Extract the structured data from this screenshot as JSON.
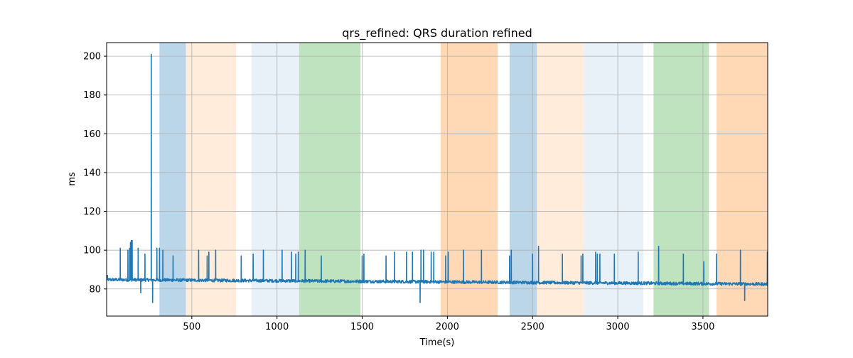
{
  "chart_data": {
    "type": "line",
    "title": "qrs_refined: QRS duration refined",
    "xlabel": "Time(s)",
    "ylabel": "ms",
    "xlim": [
      0,
      3880
    ],
    "ylim": [
      66,
      207
    ],
    "x_ticks": [
      500,
      1000,
      1500,
      2000,
      2500,
      3000,
      3500
    ],
    "x_tick_labels": [
      "500",
      "1000",
      "1500",
      "2000",
      "2500",
      "3000",
      "3500"
    ],
    "y_ticks": [
      80,
      100,
      120,
      140,
      160,
      180,
      200
    ],
    "y_tick_labels": [
      "80",
      "100",
      "120",
      "140",
      "160",
      "180",
      "200"
    ],
    "grid": true,
    "legend": "none",
    "line_color": "#1f77b4",
    "baseline": {
      "x_start": 0,
      "x_end": 3880,
      "y_start": 84.8,
      "y_end": 82.5,
      "noise": 0.8
    },
    "spikes": [
      {
        "x": 5,
        "y": 87
      },
      {
        "x": 80,
        "y": 101
      },
      {
        "x": 125,
        "y": 100
      },
      {
        "x": 135,
        "y": 101
      },
      {
        "x": 140,
        "y": 104
      },
      {
        "x": 145,
        "y": 105
      },
      {
        "x": 150,
        "y": 105
      },
      {
        "x": 185,
        "y": 101
      },
      {
        "x": 200,
        "y": 78
      },
      {
        "x": 225,
        "y": 98
      },
      {
        "x": 262,
        "y": 201
      },
      {
        "x": 270,
        "y": 73
      },
      {
        "x": 295,
        "y": 101
      },
      {
        "x": 310,
        "y": 101
      },
      {
        "x": 330,
        "y": 100
      },
      {
        "x": 390,
        "y": 97
      },
      {
        "x": 540,
        "y": 100
      },
      {
        "x": 590,
        "y": 97
      },
      {
        "x": 600,
        "y": 99
      },
      {
        "x": 640,
        "y": 100
      },
      {
        "x": 790,
        "y": 97
      },
      {
        "x": 860,
        "y": 98
      },
      {
        "x": 920,
        "y": 100
      },
      {
        "x": 1030,
        "y": 100
      },
      {
        "x": 1085,
        "y": 99
      },
      {
        "x": 1110,
        "y": 98
      },
      {
        "x": 1125,
        "y": 99
      },
      {
        "x": 1165,
        "y": 100
      },
      {
        "x": 1260,
        "y": 97
      },
      {
        "x": 1500,
        "y": 97
      },
      {
        "x": 1510,
        "y": 98
      },
      {
        "x": 1640,
        "y": 97
      },
      {
        "x": 1690,
        "y": 99
      },
      {
        "x": 1760,
        "y": 99
      },
      {
        "x": 1795,
        "y": 99
      },
      {
        "x": 1840,
        "y": 73
      },
      {
        "x": 1845,
        "y": 100
      },
      {
        "x": 1860,
        "y": 100
      },
      {
        "x": 1905,
        "y": 99
      },
      {
        "x": 1920,
        "y": 99
      },
      {
        "x": 1990,
        "y": 97
      },
      {
        "x": 2005,
        "y": 99
      },
      {
        "x": 2095,
        "y": 100
      },
      {
        "x": 2200,
        "y": 100
      },
      {
        "x": 2365,
        "y": 97
      },
      {
        "x": 2375,
        "y": 100
      },
      {
        "x": 2500,
        "y": 98
      },
      {
        "x": 2535,
        "y": 102
      },
      {
        "x": 2675,
        "y": 98
      },
      {
        "x": 2785,
        "y": 97
      },
      {
        "x": 2795,
        "y": 98
      },
      {
        "x": 2870,
        "y": 99
      },
      {
        "x": 2880,
        "y": 98
      },
      {
        "x": 2895,
        "y": 98
      },
      {
        "x": 2980,
        "y": 98
      },
      {
        "x": 3120,
        "y": 99
      },
      {
        "x": 3240,
        "y": 102
      },
      {
        "x": 3385,
        "y": 98
      },
      {
        "x": 3505,
        "y": 94
      },
      {
        "x": 3580,
        "y": 98
      },
      {
        "x": 3720,
        "y": 100
      },
      {
        "x": 3745,
        "y": 74
      },
      {
        "x": 3878,
        "y": 99
      }
    ],
    "bands": [
      {
        "x0": 310,
        "x1": 465,
        "color": "#1f77b4",
        "opacity": 0.3
      },
      {
        "x0": 465,
        "x1": 760,
        "color": "#ff7f0e",
        "opacity": 0.15
      },
      {
        "x0": 850,
        "x1": 1130,
        "color": "#1f77b4",
        "opacity": 0.1
      },
      {
        "x0": 1130,
        "x1": 1490,
        "color": "#2ca02c",
        "opacity": 0.3
      },
      {
        "x0": 1960,
        "x1": 2295,
        "color": "#ff7f0e",
        "opacity": 0.3
      },
      {
        "x0": 2365,
        "x1": 2525,
        "color": "#1f77b4",
        "opacity": 0.3
      },
      {
        "x0": 2525,
        "x1": 2800,
        "color": "#ff7f0e",
        "opacity": 0.15
      },
      {
        "x0": 2800,
        "x1": 3150,
        "color": "#1f77b4",
        "opacity": 0.1
      },
      {
        "x0": 3210,
        "x1": 3535,
        "color": "#2ca02c",
        "opacity": 0.3
      },
      {
        "x0": 3580,
        "x1": 3880,
        "color": "#ff7f0e",
        "opacity": 0.3
      }
    ]
  }
}
